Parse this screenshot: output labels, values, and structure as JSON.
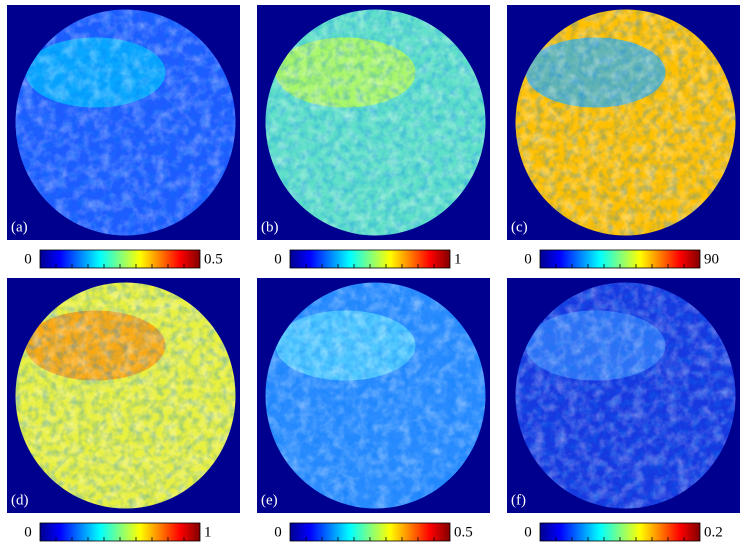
{
  "panels": [
    {
      "label": "(a)",
      "colorbar": {
        "min": 0,
        "max": 0.5
      }
    },
    {
      "label": "(b)",
      "colorbar": {
        "min": 0,
        "max": 1
      }
    },
    {
      "label": "(c)",
      "colorbar": {
        "min": 0,
        "max": 90
      }
    },
    {
      "label": "(d)",
      "colorbar": {
        "min": 0,
        "max": 1
      }
    },
    {
      "label": "(e)",
      "colorbar": {
        "min": 0,
        "max": 0.5
      }
    },
    {
      "label": "(f)",
      "colorbar": {
        "min": 0,
        "max": 0.2
      }
    }
  ]
}
